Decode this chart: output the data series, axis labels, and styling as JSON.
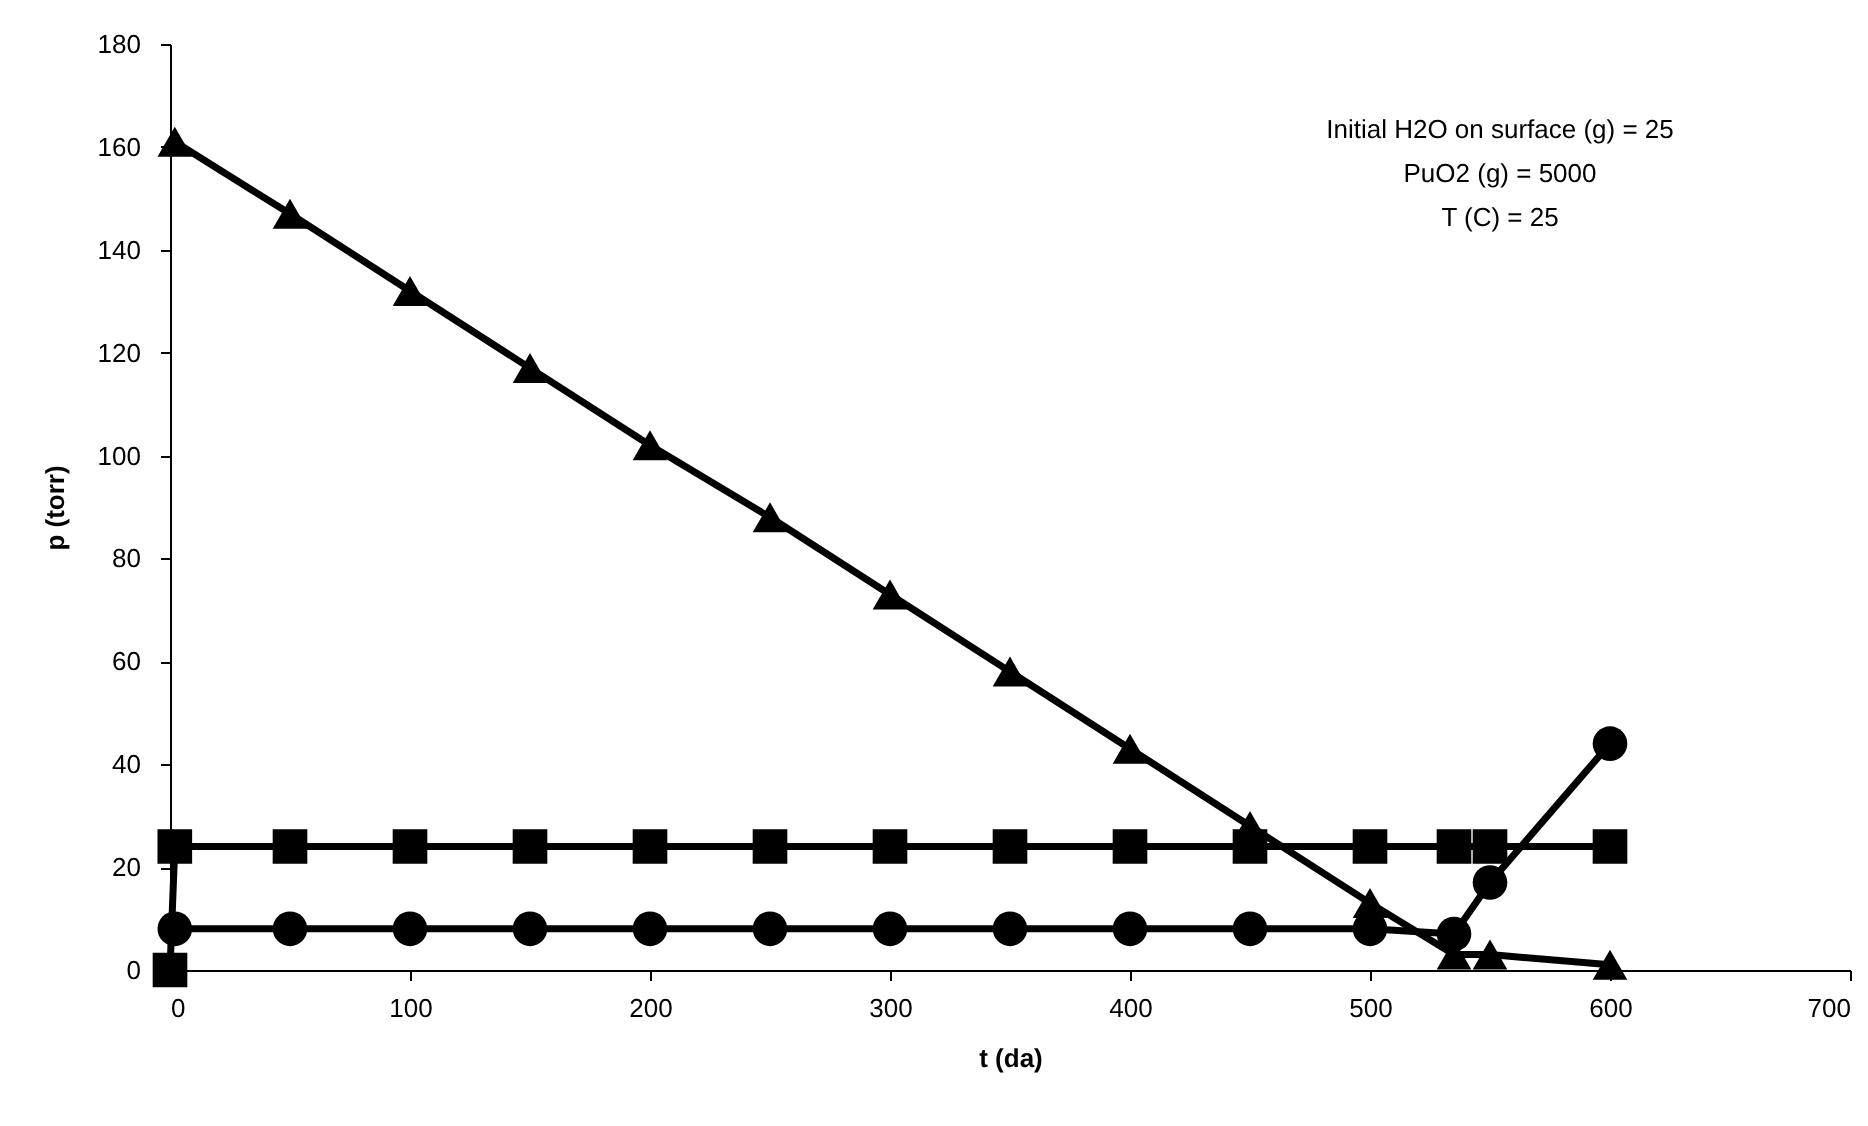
{
  "chart_data": {
    "type": "line",
    "xlabel": "t (da)",
    "ylabel": "p (torr)",
    "xlim": [
      0,
      700
    ],
    "xticks": [
      0,
      100,
      200,
      300,
      400,
      500,
      600,
      700
    ],
    "ylim": [
      0,
      180
    ],
    "yticks": [
      0,
      20,
      40,
      60,
      80,
      100,
      120,
      140,
      160,
      180
    ],
    "grid": false,
    "annotations": [
      "Initial H2O on surface (g) = 25",
      "PuO2 (g) = 5000",
      "T (C) = 25"
    ],
    "series": [
      {
        "color": "#000000",
        "marker": "square",
        "x": [
          0,
          2,
          50,
          100,
          150,
          200,
          250,
          300,
          350,
          400,
          450,
          500,
          535,
          550,
          600
        ],
        "values": [
          0,
          24,
          24,
          24,
          24,
          24,
          24,
          24,
          24,
          24,
          24,
          24,
          24,
          24,
          24
        ]
      },
      {
        "color": "#000000",
        "marker": "circle",
        "x": [
          2,
          50,
          100,
          150,
          200,
          250,
          300,
          350,
          400,
          450,
          500,
          535,
          550,
          600
        ],
        "values": [
          8,
          8,
          8,
          8,
          8,
          8,
          8,
          8,
          8,
          8,
          8,
          7,
          17,
          44
        ]
      },
      {
        "color": "#000000",
        "marker": "triangle",
        "x": [
          2,
          50,
          100,
          150,
          200,
          250,
          300,
          350,
          400,
          450,
          500,
          535,
          550,
          600
        ],
        "values": [
          161,
          147,
          132,
          117,
          102,
          88,
          73,
          58,
          43,
          28,
          13,
          3,
          3,
          1
        ]
      }
    ]
  }
}
